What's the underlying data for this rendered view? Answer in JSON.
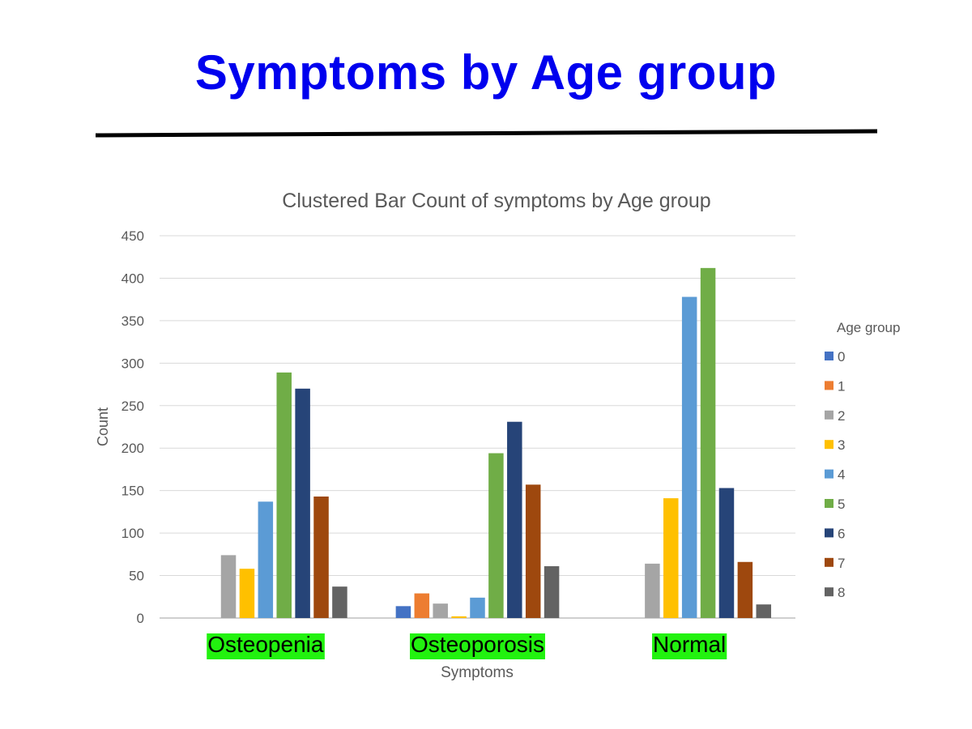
{
  "slide": {
    "title": "Symptoms by Age group"
  },
  "chart_data": {
    "type": "bar",
    "title": "Clustered Bar Count of symptoms by Age group",
    "xlabel": "Symptoms",
    "ylabel": "Count",
    "ylim": [
      0,
      450
    ],
    "yticks": [
      0,
      50,
      100,
      150,
      200,
      250,
      300,
      350,
      400,
      450
    ],
    "grid": true,
    "legend_title": "Age group",
    "legend_position": "right",
    "categories": [
      "Osteopenia",
      "Osteoporosis",
      "Normal"
    ],
    "category_label_highlight": "#22f20f",
    "series": [
      {
        "name": "0",
        "color": "#4472c4",
        "values": [
          0,
          14,
          0
        ]
      },
      {
        "name": "1",
        "color": "#ed7d31",
        "values": [
          0,
          29,
          0
        ]
      },
      {
        "name": "2",
        "color": "#a5a5a5",
        "values": [
          74,
          17,
          64
        ]
      },
      {
        "name": "3",
        "color": "#ffc000",
        "values": [
          58,
          2,
          141
        ]
      },
      {
        "name": "4",
        "color": "#5b9bd5",
        "values": [
          137,
          24,
          378
        ]
      },
      {
        "name": "5",
        "color": "#70ad47",
        "values": [
          289,
          194,
          412
        ]
      },
      {
        "name": "6",
        "color": "#264478",
        "values": [
          270,
          231,
          153
        ]
      },
      {
        "name": "7",
        "color": "#9e480e",
        "values": [
          143,
          157,
          66
        ]
      },
      {
        "name": "8",
        "color": "#636363",
        "values": [
          37,
          61,
          16
        ]
      }
    ]
  }
}
